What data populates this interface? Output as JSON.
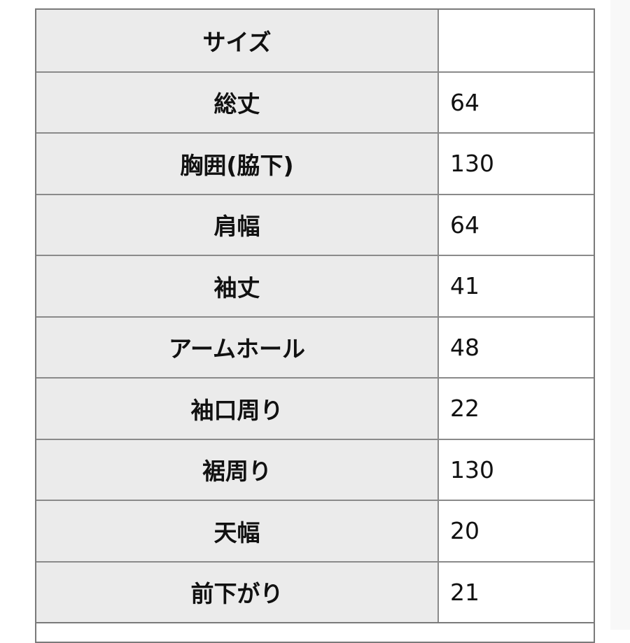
{
  "table": {
    "rows": [
      {
        "label": "サイズ",
        "value": ""
      },
      {
        "label": "総丈",
        "value": "64"
      },
      {
        "label": "胸囲(脇下)",
        "value": "130"
      },
      {
        "label": "肩幅",
        "value": "64"
      },
      {
        "label": "袖丈",
        "value": "41"
      },
      {
        "label": "アームホール",
        "value": "48"
      },
      {
        "label": "袖口周り",
        "value": "22"
      },
      {
        "label": "裾周り",
        "value": "130"
      },
      {
        "label": "天幅",
        "value": "20"
      },
      {
        "label": "前下がり",
        "value": "21"
      }
    ]
  }
}
